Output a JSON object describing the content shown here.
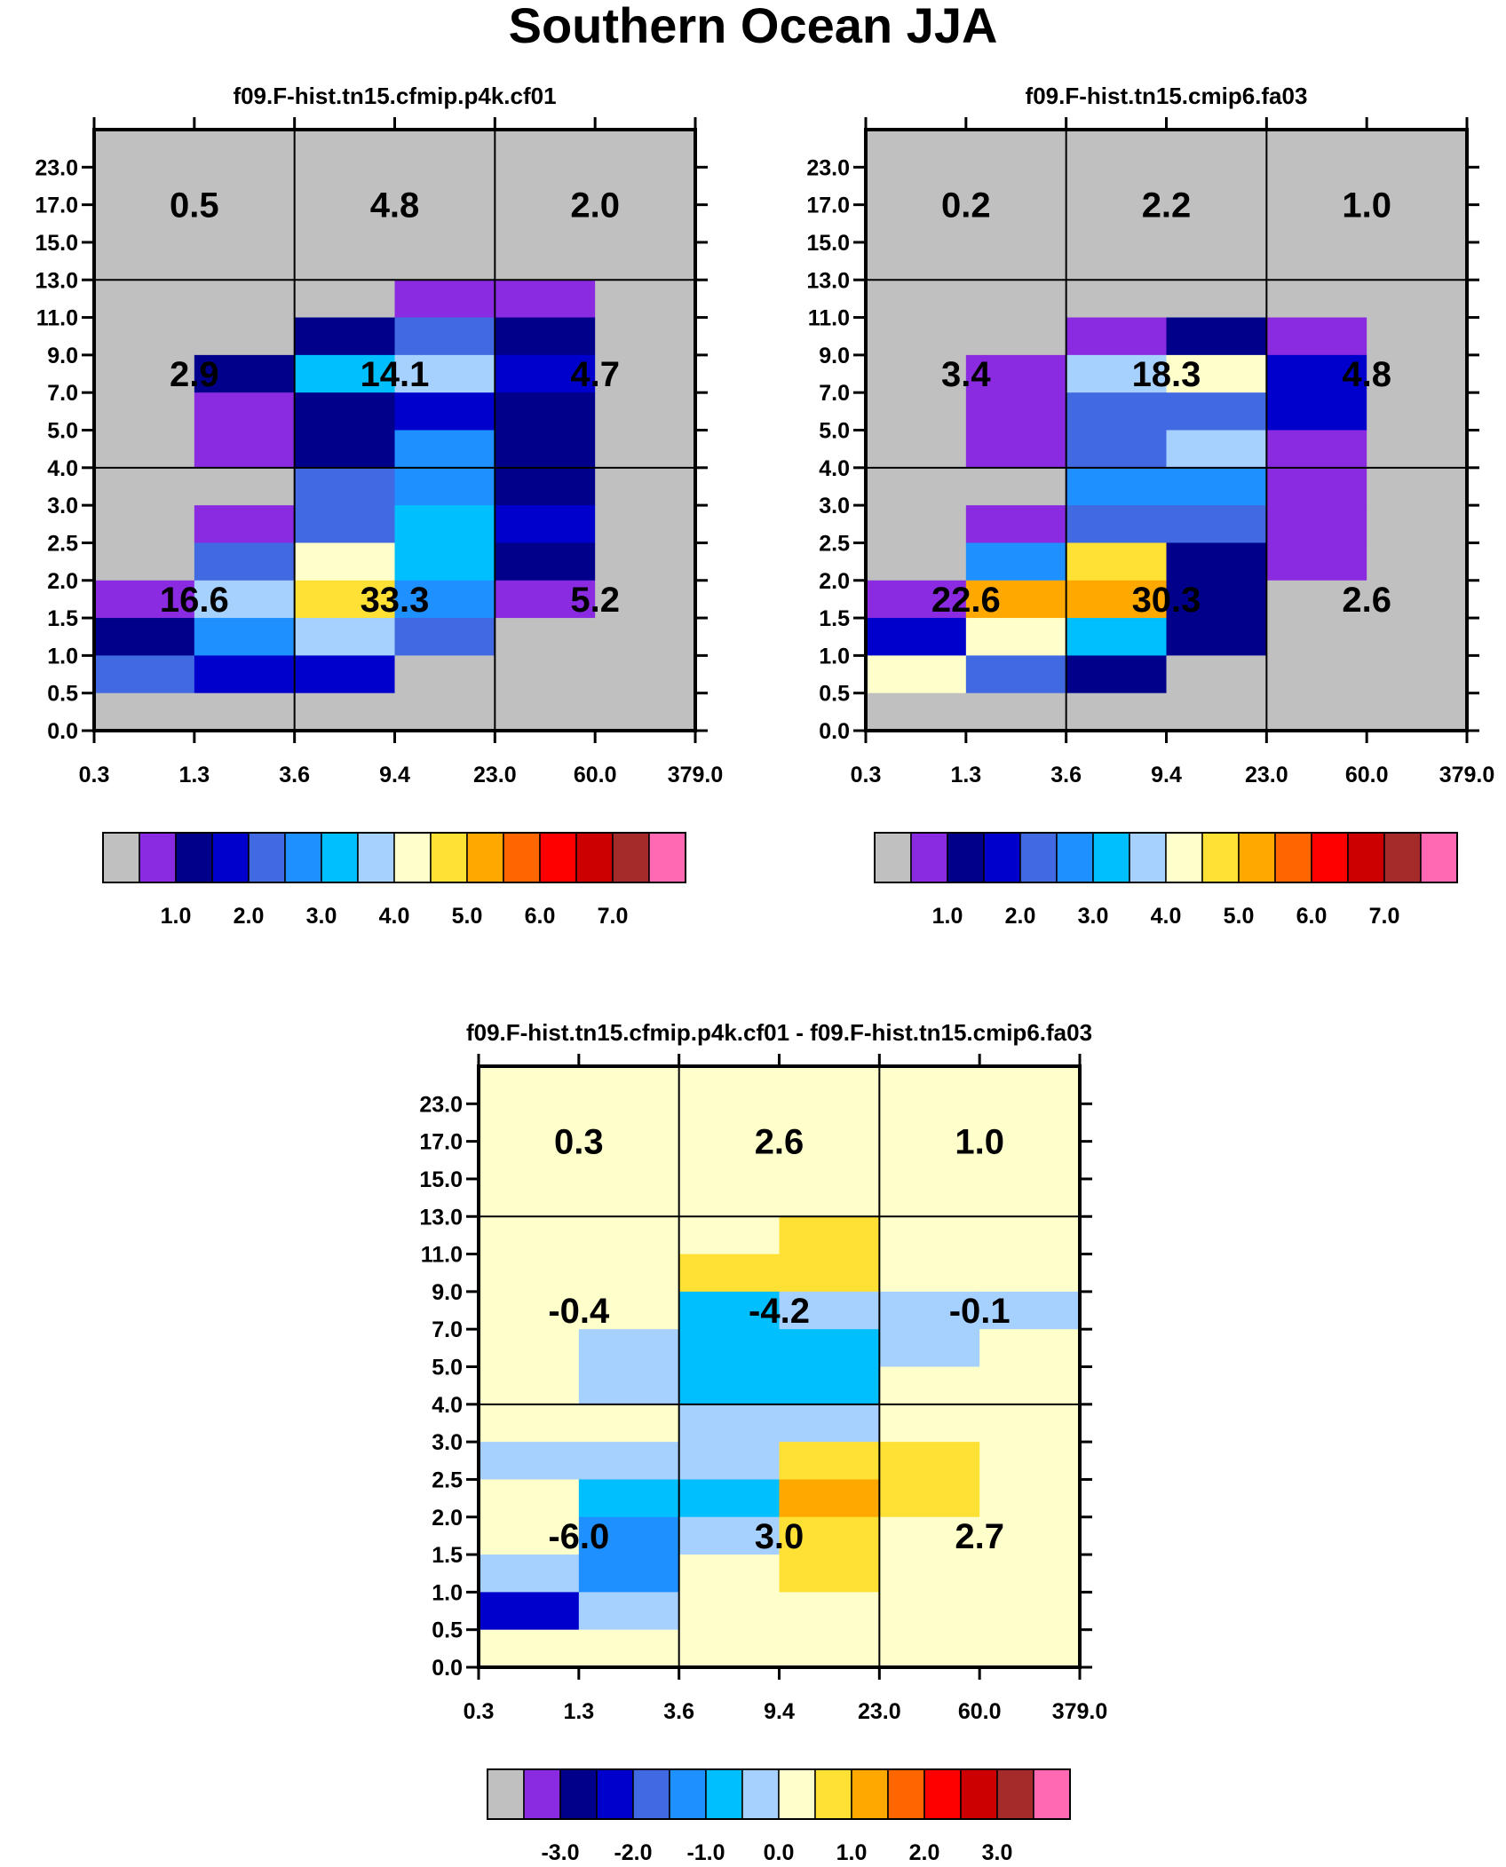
{
  "figure": {
    "title": "Southern Ocean JJA"
  },
  "chart_data": [
    {
      "type": "heatmap",
      "title": "f09.F-hist.tn15.cfmip.p4k.cf01",
      "xlabel": "",
      "ylabel": "",
      "x_tick_labels": [
        "0.3",
        "1.3",
        "3.6",
        "9.4",
        "23.0",
        "60.0",
        "379.0"
      ],
      "y_tick_labels": [
        "0.0",
        "0.5",
        "1.0",
        "1.5",
        "2.0",
        "2.5",
        "3.0",
        "4.0",
        "5.0",
        "7.0",
        "9.0",
        "11.0",
        "13.0",
        "15.0",
        "17.0",
        "23.0"
      ],
      "note": "cell values are colorbar bin indices (0 = lowest/gray bin), rows ordered top (23.0) to bottom (0.0), columns left to right",
      "cells": [
        [
          0,
          0,
          0,
          0,
          0,
          0
        ],
        [
          0,
          0,
          0,
          0,
          0,
          0
        ],
        [
          0,
          0,
          0,
          0,
          0,
          0
        ],
        [
          0,
          0,
          0,
          0,
          0,
          0
        ],
        [
          0,
          0,
          0,
          1,
          1,
          0
        ],
        [
          0,
          0,
          2,
          4,
          2,
          0
        ],
        [
          0,
          2,
          6,
          7,
          3,
          0
        ],
        [
          0,
          1,
          2,
          3,
          2,
          0
        ],
        [
          0,
          1,
          2,
          5,
          2,
          0
        ],
        [
          0,
          0,
          4,
          5,
          2,
          0
        ],
        [
          0,
          1,
          4,
          6,
          3,
          0
        ],
        [
          0,
          4,
          8,
          6,
          2,
          0
        ],
        [
          1,
          7,
          9,
          5,
          1,
          0
        ],
        [
          2,
          5,
          7,
          4,
          0,
          0
        ],
        [
          4,
          3,
          3,
          0,
          0,
          0
        ],
        [
          0,
          0,
          0,
          0,
          0,
          0
        ]
      ],
      "block_labels": [
        [
          "0.5",
          "4.8",
          "2.0"
        ],
        [
          "2.9",
          "14.1",
          "4.7"
        ],
        [
          "16.6",
          "33.3",
          "5.2"
        ]
      ],
      "colorbar_labels": [
        "1.0",
        "2.0",
        "3.0",
        "4.0",
        "5.0",
        "6.0",
        "7.0"
      ]
    },
    {
      "type": "heatmap",
      "title": "f09.F-hist.tn15.cmip6.fa03",
      "xlabel": "",
      "ylabel": "",
      "x_tick_labels": [
        "0.3",
        "1.3",
        "3.6",
        "9.4",
        "23.0",
        "60.0",
        "379.0"
      ],
      "y_tick_labels": [
        "0.0",
        "0.5",
        "1.0",
        "1.5",
        "2.0",
        "2.5",
        "3.0",
        "4.0",
        "5.0",
        "7.0",
        "9.0",
        "11.0",
        "13.0",
        "15.0",
        "17.0",
        "23.0"
      ],
      "cells": [
        [
          0,
          0,
          0,
          0,
          0,
          0
        ],
        [
          0,
          0,
          0,
          0,
          0,
          0
        ],
        [
          0,
          0,
          0,
          0,
          0,
          0
        ],
        [
          0,
          0,
          0,
          0,
          0,
          0
        ],
        [
          0,
          0,
          0,
          0,
          0,
          0
        ],
        [
          0,
          0,
          1,
          2,
          1,
          0
        ],
        [
          0,
          1,
          7,
          8,
          3,
          0
        ],
        [
          0,
          1,
          4,
          4,
          3,
          0
        ],
        [
          0,
          1,
          4,
          7,
          1,
          0
        ],
        [
          0,
          0,
          5,
          5,
          1,
          0
        ],
        [
          0,
          1,
          4,
          4,
          1,
          0
        ],
        [
          0,
          5,
          9,
          2,
          1,
          0
        ],
        [
          1,
          10,
          10,
          2,
          0,
          0
        ],
        [
          3,
          8,
          6,
          2,
          0,
          0
        ],
        [
          8,
          4,
          2,
          0,
          0,
          0
        ],
        [
          0,
          0,
          0,
          0,
          0,
          0
        ]
      ],
      "block_labels": [
        [
          "0.2",
          "2.2",
          "1.0"
        ],
        [
          "3.4",
          "18.3",
          "4.8"
        ],
        [
          "22.6",
          "30.3",
          "2.6"
        ]
      ],
      "colorbar_labels": [
        "1.0",
        "2.0",
        "3.0",
        "4.0",
        "5.0",
        "6.0",
        "7.0"
      ]
    },
    {
      "type": "heatmap",
      "title": "f09.F-hist.tn15.cfmip.p4k.cf01 - f09.F-hist.tn15.cmip6.fa03",
      "xlabel": "",
      "ylabel": "",
      "x_tick_labels": [
        "0.3",
        "1.3",
        "3.6",
        "9.4",
        "23.0",
        "60.0",
        "379.0"
      ],
      "y_tick_labels": [
        "0.0",
        "0.5",
        "1.0",
        "1.5",
        "2.0",
        "2.5",
        "3.0",
        "4.0",
        "5.0",
        "7.0",
        "9.0",
        "11.0",
        "13.0",
        "15.0",
        "17.0",
        "23.0"
      ],
      "cells": [
        [
          8,
          8,
          8,
          8,
          8,
          8
        ],
        [
          8,
          8,
          8,
          8,
          8,
          8
        ],
        [
          8,
          8,
          8,
          8,
          8,
          8
        ],
        [
          8,
          8,
          8,
          8,
          8,
          8
        ],
        [
          8,
          8,
          8,
          9,
          8,
          8
        ],
        [
          8,
          8,
          9,
          9,
          8,
          8
        ],
        [
          8,
          8,
          6,
          7,
          7,
          7
        ],
        [
          8,
          7,
          6,
          6,
          7,
          8
        ],
        [
          8,
          7,
          6,
          6,
          8,
          8
        ],
        [
          8,
          8,
          7,
          7,
          8,
          8
        ],
        [
          7,
          7,
          7,
          9,
          9,
          8
        ],
        [
          8,
          6,
          6,
          10,
          9,
          8
        ],
        [
          8,
          5,
          7,
          9,
          8,
          8
        ],
        [
          7,
          5,
          8,
          9,
          8,
          8
        ],
        [
          3,
          7,
          8,
          8,
          8,
          8
        ],
        [
          8,
          8,
          8,
          8,
          8,
          8
        ]
      ],
      "block_labels": [
        [
          "0.3",
          "2.6",
          "1.0"
        ],
        [
          "-0.4",
          "-4.2",
          "-0.1"
        ],
        [
          "-6.0",
          "3.0",
          "2.7"
        ]
      ],
      "colorbar_labels": [
        "-3.0",
        "-2.0",
        "-1.0",
        "0.0",
        "1.0",
        "2.0",
        "3.0"
      ]
    }
  ],
  "palette": [
    "#c0c0c0",
    "#8a2be2",
    "#00008b",
    "#0000cd",
    "#4169e1",
    "#1e90ff",
    "#00bfff",
    "#a6d1ff",
    "#ffffcc",
    "#ffe135",
    "#ffa800",
    "#ff6600",
    "#ff0000",
    "#cc0000",
    "#a52a2a",
    "#ff69b4"
  ]
}
